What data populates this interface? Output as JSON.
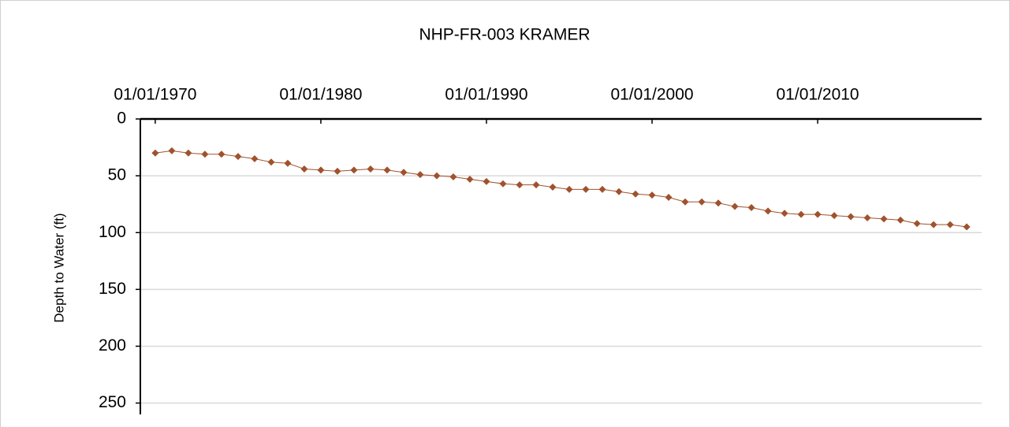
{
  "chart_data": {
    "type": "line",
    "title": "NHP-FR-003 KRAMER",
    "y_label": "Depth to Water (ft)",
    "x": [
      1970,
      1971,
      1972,
      1973,
      1974,
      1975,
      1976,
      1977,
      1978,
      1979,
      1980,
      1981,
      1982,
      1983,
      1984,
      1985,
      1986,
      1987,
      1988,
      1989,
      1990,
      1991,
      1992,
      1993,
      1994,
      1995,
      1996,
      1997,
      1998,
      1999,
      2000,
      2001,
      2002,
      2003,
      2004,
      2005,
      2006,
      2007,
      2008,
      2009,
      2010,
      2011,
      2012,
      2013,
      2014,
      2015,
      2016,
      2017,
      2018,
      2019
    ],
    "series": [
      {
        "color": "#a0522d",
        "values": [
          30,
          28,
          30,
          31,
          31,
          33,
          35,
          38,
          39,
          44,
          45,
          46,
          45,
          44,
          45,
          47,
          49,
          50,
          51,
          53,
          55,
          57,
          58,
          58,
          60,
          62,
          62,
          62,
          64,
          66,
          67,
          69,
          73,
          73,
          74,
          77,
          78,
          81,
          83,
          84,
          84,
          85,
          86,
          87,
          88,
          89,
          92,
          93,
          93,
          95
        ]
      }
    ],
    "xlim": [
      1969.1,
      2019.9
    ],
    "xticks": [
      {
        "value": 1970,
        "label": "01/01/1970"
      },
      {
        "value": 1980,
        "label": "01/01/1980"
      },
      {
        "value": 1990,
        "label": "01/01/1990"
      },
      {
        "value": 2000,
        "label": "01/01/2000"
      },
      {
        "value": 2010,
        "label": "01/01/2010"
      }
    ],
    "ylim": [
      0,
      260
    ],
    "yticks": [
      0,
      50,
      100,
      150,
      200,
      250
    ],
    "y_inverted": true,
    "grid": true
  }
}
